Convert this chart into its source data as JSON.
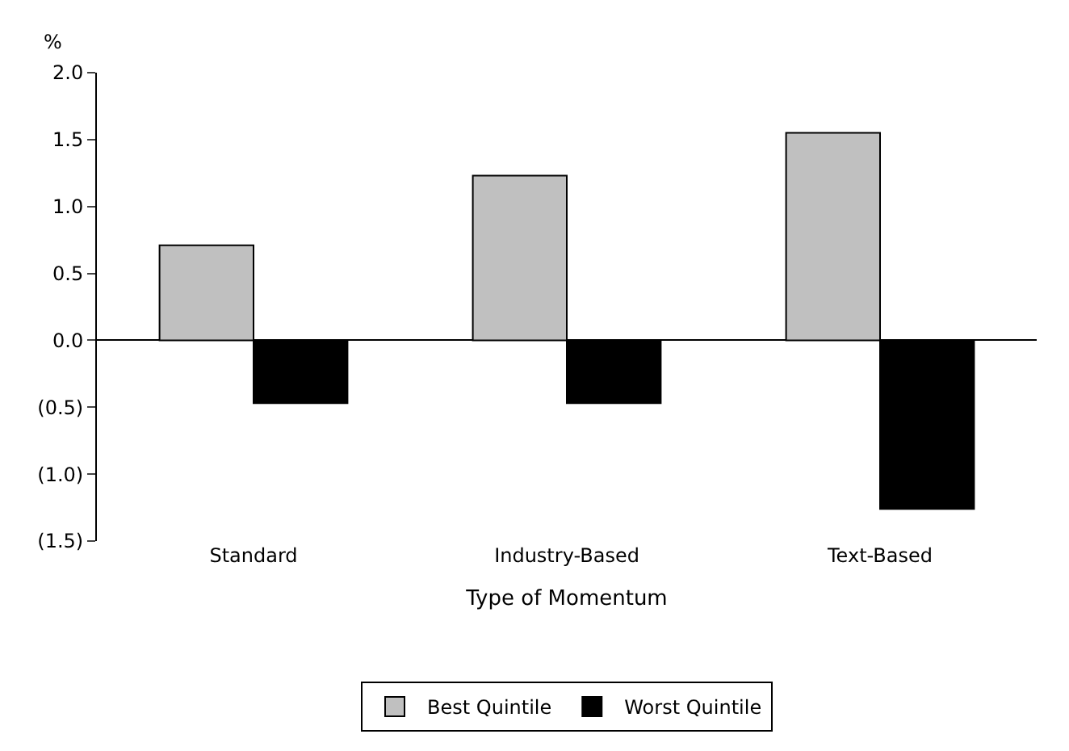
{
  "chart_data": {
    "type": "bar",
    "ylabel": "%",
    "xlabel": "Type of Momentum",
    "categories": [
      "Standard",
      "Industry-Based",
      "Text-Based"
    ],
    "series": [
      {
        "name": "Best Quintile",
        "color": "#c0c0c0",
        "values": [
          0.71,
          1.23,
          1.55
        ]
      },
      {
        "name": "Worst Quintile",
        "color": "#000000",
        "values": [
          -0.47,
          -0.47,
          -1.26
        ]
      }
    ],
    "ylim": [
      -1.5,
      2.0
    ],
    "yticks": [
      {
        "value": -1.5,
        "label": "(1.5)"
      },
      {
        "value": -1.0,
        "label": "(1.0)"
      },
      {
        "value": -0.5,
        "label": "(0.5)"
      },
      "0.0",
      "0.5",
      "1.0",
      "1.5",
      "2.0"
    ],
    "legend": "bottom"
  }
}
